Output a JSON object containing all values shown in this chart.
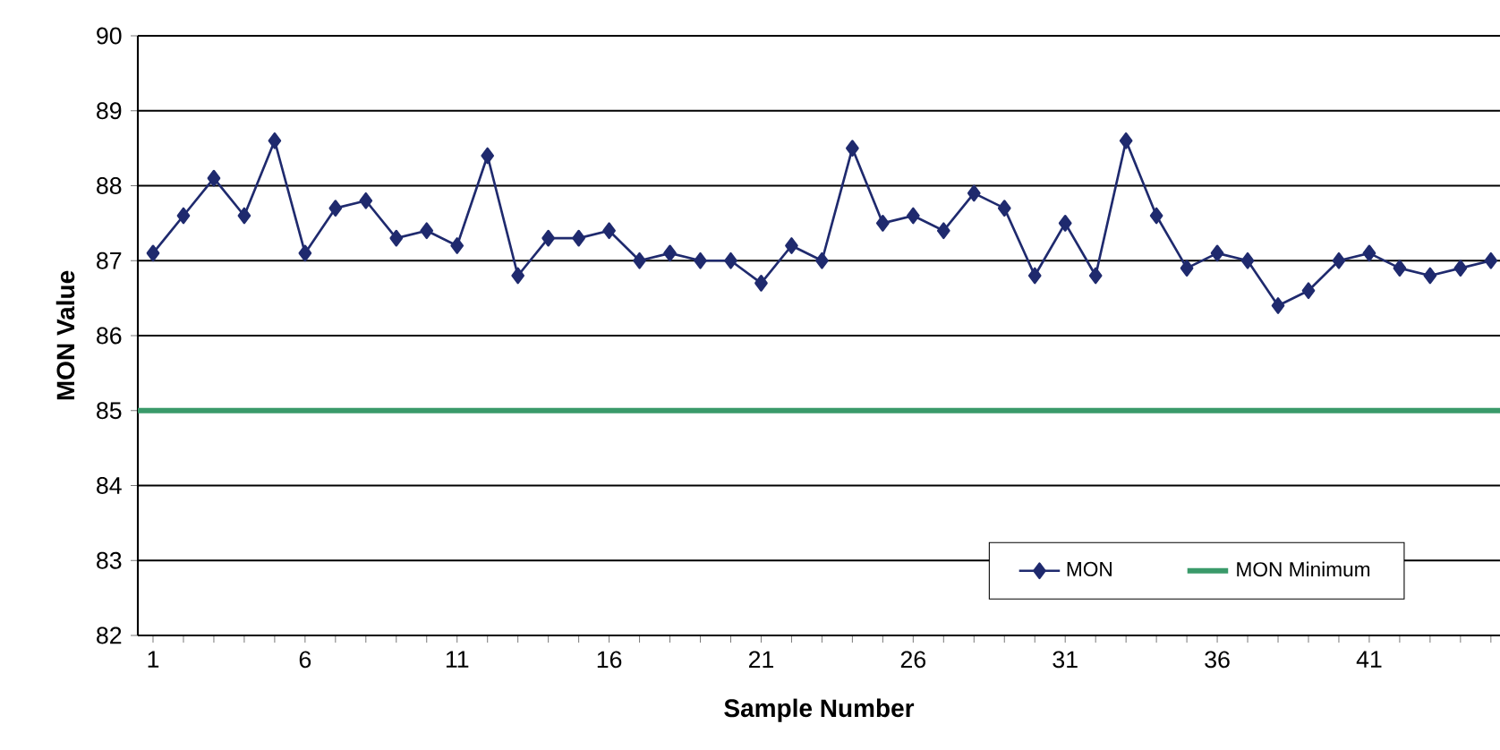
{
  "chart_data": {
    "type": "line",
    "xlabel": "Sample Number",
    "ylabel": "MON Value",
    "x": [
      1,
      2,
      3,
      4,
      5,
      6,
      7,
      8,
      9,
      10,
      11,
      12,
      13,
      14,
      15,
      16,
      17,
      18,
      19,
      20,
      21,
      22,
      23,
      24,
      25,
      26,
      27,
      28,
      29,
      30,
      31,
      32,
      33,
      34,
      35,
      36,
      37,
      38,
      39,
      40,
      41,
      42,
      43,
      44,
      45
    ],
    "series": [
      {
        "name": "MON",
        "color": "#1f2a6e",
        "values": [
          87.1,
          87.6,
          88.1,
          87.6,
          88.6,
          87.1,
          87.7,
          87.8,
          87.3,
          87.4,
          87.2,
          88.4,
          86.8,
          87.3,
          87.3,
          87.4,
          87.0,
          87.1,
          87.0,
          87.0,
          86.7,
          87.2,
          87.0,
          88.5,
          87.5,
          87.6,
          87.4,
          87.9,
          87.7,
          86.8,
          87.5,
          86.8,
          88.6,
          87.6,
          86.9,
          87.1,
          87.0,
          86.4,
          86.6,
          87.0,
          87.1,
          86.9,
          86.8,
          86.9,
          87.0
        ]
      }
    ],
    "ref_lines": [
      {
        "axis": "y",
        "value": 85,
        "label": "MON Minimum",
        "color": "#3a9a6a"
      }
    ],
    "xlim": [
      0.5,
      45.3
    ],
    "ylim": [
      82,
      90
    ],
    "xticks": [
      1,
      {
        "value": 2,
        "label": null
      },
      {
        "value": 3,
        "label": null
      },
      {
        "value": 4,
        "label": null
      },
      {
        "value": 5,
        "label": null
      },
      6,
      {
        "value": 7,
        "label": null
      },
      {
        "value": 8,
        "label": null
      },
      {
        "value": 9,
        "label": null
      },
      {
        "value": 10,
        "label": null
      },
      11,
      {
        "value": 12,
        "label": null
      },
      {
        "value": 13,
        "label": null
      },
      {
        "value": 14,
        "label": null
      },
      {
        "value": 15,
        "label": null
      },
      16,
      {
        "value": 17,
        "label": null
      },
      {
        "value": 18,
        "label": null
      },
      {
        "value": 19,
        "label": null
      },
      {
        "value": 20,
        "label": null
      },
      21,
      {
        "value": 22,
        "label": null
      },
      {
        "value": 23,
        "label": null
      },
      {
        "value": 24,
        "label": null
      },
      {
        "value": 25,
        "label": null
      },
      26,
      {
        "value": 27,
        "label": null
      },
      {
        "value": 28,
        "label": null
      },
      {
        "value": 29,
        "label": null
      },
      {
        "value": 30,
        "label": null
      },
      31,
      {
        "value": 32,
        "label": null
      },
      {
        "value": 33,
        "label": null
      },
      {
        "value": 34,
        "label": null
      },
      {
        "value": 35,
        "label": null
      },
      36,
      {
        "value": 37,
        "label": null
      },
      {
        "value": 38,
        "label": null
      },
      {
        "value": 39,
        "label": null
      },
      {
        "value": 40,
        "label": null
      },
      41,
      {
        "value": 42,
        "label": null
      },
      {
        "value": 43,
        "label": null
      },
      {
        "value": 44,
        "label": null
      },
      {
        "value": 45,
        "label": null
      }
    ],
    "yticks": [
      82,
      83,
      84,
      85,
      86,
      87,
      88,
      89,
      90
    ],
    "grid": "y",
    "legend": "bottom right",
    "marker": "diamond",
    "line_style": "solid"
  }
}
